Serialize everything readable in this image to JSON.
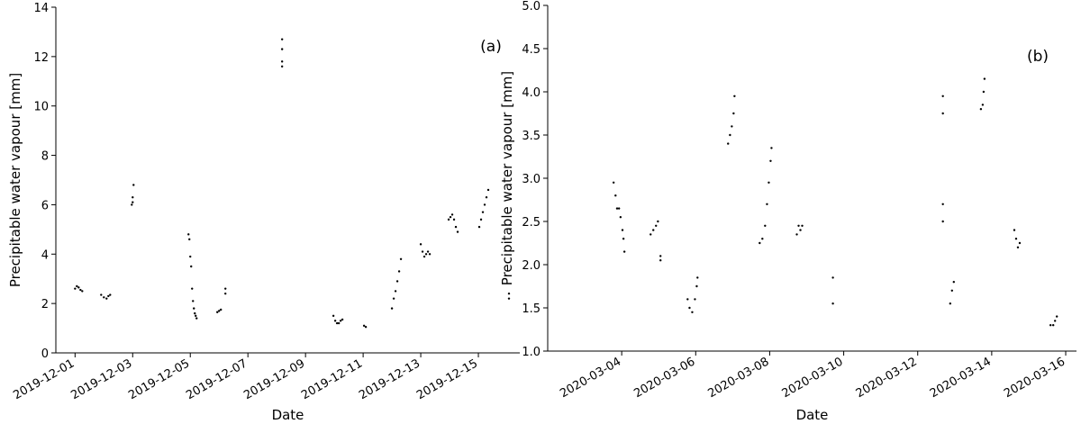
{
  "chart_data": [
    {
      "type": "scatter",
      "annotation": "(a)",
      "x_label": "Date",
      "y_label": "Precipitable water vapour [mm]",
      "color": "#000000",
      "xlim": [
        "2019-11-30T08:00",
        "2019-12-16T10:30"
      ],
      "xticks": [
        "2019-12-01",
        "2019-12-03",
        "2019-12-05",
        "2019-12-07",
        "2019-12-09",
        "2019-12-11",
        "2019-12-13",
        "2019-12-15"
      ],
      "ylim": [
        0,
        14
      ],
      "yticks": [
        0,
        2,
        4,
        6,
        8,
        10,
        12,
        14
      ],
      "x": [
        "2019-12-01T00:00",
        "2019-12-01T01:30",
        "2019-12-01T03:00",
        "2019-12-01T04:30",
        "2019-12-01T06:00",
        "2019-12-01T21:45",
        "2019-12-02T00:00",
        "2019-12-02T02:15",
        "2019-12-02T03:45",
        "2019-12-02T05:15",
        "2019-12-02T23:15",
        "2019-12-03T00:00",
        "2019-12-03T00:00",
        "2019-12-03T00:45",
        "2019-12-04T22:30",
        "2019-12-04T23:15",
        "2019-12-05T00:00",
        "2019-12-05T00:45",
        "2019-12-05T01:30",
        "2019-12-05T02:15",
        "2019-12-05T03:00",
        "2019-12-05T03:45",
        "2019-12-05T04:30",
        "2019-12-05T05:15",
        "2019-12-05T22:30",
        "2019-12-06T00:00",
        "2019-12-06T01:30",
        "2019-12-06T05:15",
        "2019-12-06T05:15",
        "2019-12-08T04:30",
        "2019-12-08T04:30",
        "2019-12-08T04:30",
        "2019-12-08T04:30",
        "2019-12-09T23:15",
        "2019-12-10T00:45",
        "2019-12-10T02:15",
        "2019-12-10T03:45",
        "2019-12-10T05:15",
        "2019-12-10T06:45",
        "2019-12-11T00:45",
        "2019-12-11T02:15",
        "2019-12-12T00:00",
        "2019-12-12T01:30",
        "2019-12-12T03:00",
        "2019-12-12T04:30",
        "2019-12-12T06:00",
        "2019-12-12T07:30",
        "2019-12-13T00:00",
        "2019-12-13T01:30",
        "2019-12-13T03:00",
        "2019-12-13T04:30",
        "2019-12-13T06:00",
        "2019-12-13T07:30",
        "2019-12-13T23:15",
        "2019-12-14T00:45",
        "2019-12-14T02:15",
        "2019-12-14T03:45",
        "2019-12-14T05:15",
        "2019-12-14T06:45",
        "2019-12-15T00:45",
        "2019-12-15T02:15",
        "2019-12-15T03:45",
        "2019-12-15T05:15",
        "2019-12-15T06:45",
        "2019-12-15T08:15",
        "2019-12-16T01:30",
        "2019-12-16T01:30"
      ],
      "values": [
        2.6,
        2.7,
        2.65,
        2.55,
        2.5,
        2.35,
        2.25,
        2.2,
        2.3,
        2.35,
        6.0,
        6.3,
        6.1,
        6.8,
        4.8,
        4.6,
        3.9,
        3.5,
        2.6,
        2.1,
        1.8,
        1.6,
        1.5,
        1.4,
        1.65,
        1.7,
        1.75,
        2.4,
        2.6,
        12.7,
        12.3,
        11.8,
        11.6,
        1.5,
        1.3,
        1.2,
        1.2,
        1.3,
        1.35,
        1.1,
        1.05,
        1.8,
        2.2,
        2.5,
        2.9,
        3.3,
        3.8,
        4.4,
        4.1,
        3.9,
        4.0,
        4.1,
        4.0,
        5.4,
        5.5,
        5.6,
        5.4,
        5.1,
        4.9,
        5.1,
        5.4,
        5.7,
        6.0,
        6.3,
        6.6,
        2.2,
        2.4
      ]
    },
    {
      "type": "scatter",
      "annotation": "(b)",
      "x_label": "Date",
      "y_label": "Precipitable water vapour [mm]",
      "color": "#000000",
      "xlim": [
        "2020-03-02T00:00",
        "2020-03-16T07:00"
      ],
      "xticks": [
        "2020-03-04",
        "2020-03-06",
        "2020-03-08",
        "2020-03-10",
        "2020-03-12",
        "2020-03-14",
        "2020-03-16"
      ],
      "ylim": [
        1,
        5
      ],
      "yticks": [
        {
          "value": 1,
          "label": "1.0"
        },
        1.5,
        {
          "value": 2,
          "label": "2.0"
        },
        2.5,
        {
          "value": 3,
          "label": "3.0"
        },
        3.5,
        {
          "value": 4,
          "label": "4.0"
        },
        4.5,
        {
          "value": 5,
          "label": "5.0"
        }
      ],
      "x": [
        "2020-03-03T18:45",
        "2020-03-03T20:00",
        "2020-03-03T21:00",
        "2020-03-03T22:15",
        "2020-03-03T23:15",
        "2020-03-04T00:30",
        "2020-03-04T01:10",
        "2020-03-04T01:45",
        "2020-03-04T18:45",
        "2020-03-04T20:30",
        "2020-03-04T22:15",
        "2020-03-04T23:30",
        "2020-03-05T01:10",
        "2020-03-05T01:10",
        "2020-03-05T18:45",
        "2020-03-05T20:00",
        "2020-03-05T21:45",
        "2020-03-05T23:30",
        "2020-03-06T00:40",
        "2020-03-06T01:10",
        "2020-03-06T21:00",
        "2020-03-06T22:15",
        "2020-03-06T23:25",
        "2020-03-07T00:35",
        "2020-03-07T01:10",
        "2020-03-07T17:30",
        "2020-03-07T19:15",
        "2020-03-07T21:00",
        "2020-03-07T22:15",
        "2020-03-07T23:25",
        "2020-03-08T00:35",
        "2020-03-08T01:10",
        "2020-03-08T17:35",
        "2020-03-08T18:45",
        "2020-03-08T19:55",
        "2020-03-08T21:05",
        "2020-03-09T17:00",
        "2020-03-09T17:00",
        "2020-03-12T16:20",
        "2020-03-12T16:20",
        "2020-03-12T16:20",
        "2020-03-12T16:20",
        "2020-03-12T21:05",
        "2020-03-12T22:15",
        "2020-03-12T23:25",
        "2020-03-13T17:00",
        "2020-03-13T18:10",
        "2020-03-13T18:45",
        "2020-03-13T19:20",
        "2020-03-14T14:40",
        "2020-03-14T15:50",
        "2020-03-14T17:00",
        "2020-03-14T18:10",
        "2020-03-15T14:10",
        "2020-03-15T15:55",
        "2020-03-15T17:05",
        "2020-03-15T18:15"
      ],
      "values": [
        2.95,
        2.8,
        2.65,
        2.65,
        2.55,
        2.4,
        2.3,
        2.15,
        2.35,
        2.4,
        2.45,
        2.5,
        2.1,
        2.05,
        1.6,
        1.5,
        1.45,
        1.6,
        1.75,
        1.85,
        3.4,
        3.5,
        3.6,
        3.75,
        3.95,
        2.25,
        2.3,
        2.45,
        2.7,
        2.95,
        3.2,
        3.35,
        2.35,
        2.45,
        2.4,
        2.45,
        1.55,
        1.85,
        3.95,
        3.75,
        2.7,
        2.5,
        1.55,
        1.7,
        1.8,
        3.8,
        3.85,
        4.0,
        4.15,
        2.4,
        2.3,
        2.2,
        2.25,
        1.3,
        1.3,
        1.35,
        1.4
      ]
    }
  ]
}
